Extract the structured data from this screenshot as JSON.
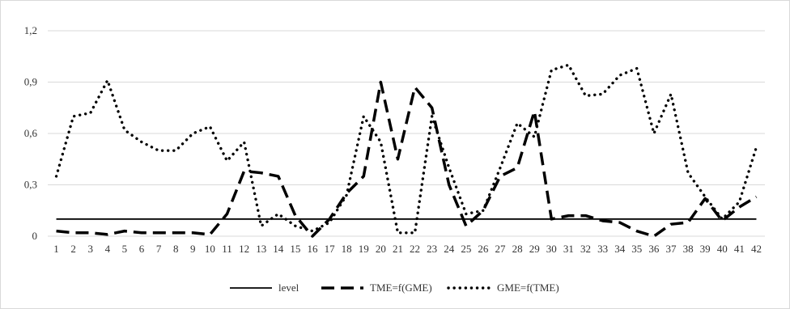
{
  "chart_data": {
    "type": "line",
    "title": "",
    "xlabel": "",
    "ylabel": "",
    "ylim": [
      0,
      1.2
    ],
    "y_ticks": [
      "0",
      "0,3",
      "0,6",
      "0,9",
      "1,2"
    ],
    "y_tick_values": [
      0,
      0.3,
      0.6,
      0.9,
      1.2
    ],
    "x": [
      "1",
      "2",
      "3",
      "4",
      "5",
      "6",
      "7",
      "8",
      "9",
      "10",
      "11",
      "12",
      "13",
      "14",
      "15",
      "16",
      "17",
      "18",
      "19",
      "20",
      "21",
      "22",
      "23",
      "24",
      "25",
      "26",
      "27",
      "28",
      "29",
      "30",
      "31",
      "32",
      "33",
      "34",
      "35",
      "36",
      "37",
      "38",
      "39",
      "40",
      "41",
      "42"
    ],
    "grid": {
      "horizontal": true,
      "vertical": false,
      "color": "#d9d9d9"
    },
    "legend_position": "bottom",
    "series": [
      {
        "name": "level",
        "style": "solid",
        "color": "#000000",
        "values": [
          0.1,
          0.1,
          0.1,
          0.1,
          0.1,
          0.1,
          0.1,
          0.1,
          0.1,
          0.1,
          0.1,
          0.1,
          0.1,
          0.1,
          0.1,
          0.1,
          0.1,
          0.1,
          0.1,
          0.1,
          0.1,
          0.1,
          0.1,
          0.1,
          0.1,
          0.1,
          0.1,
          0.1,
          0.1,
          0.1,
          0.1,
          0.1,
          0.1,
          0.1,
          0.1,
          0.1,
          0.1,
          0.1,
          0.1,
          0.1,
          0.1,
          0.1
        ]
      },
      {
        "name": "TME=f(GME)",
        "style": "dashed",
        "color": "#000000",
        "values": [
          0.03,
          0.02,
          0.02,
          0.01,
          0.03,
          0.02,
          0.02,
          0.02,
          0.02,
          0.01,
          0.13,
          0.38,
          0.37,
          0.35,
          0.12,
          0.0,
          0.1,
          0.25,
          0.35,
          0.9,
          0.45,
          0.87,
          0.75,
          0.3,
          0.06,
          0.15,
          0.35,
          0.4,
          0.73,
          0.1,
          0.12,
          0.12,
          0.09,
          0.08,
          0.03,
          0.0,
          0.07,
          0.08,
          0.22,
          0.09,
          0.17,
          0.23
        ]
      },
      {
        "name": "GME=f(TME)",
        "style": "dotted",
        "color": "#000000",
        "values": [
          0.35,
          0.7,
          0.72,
          0.91,
          0.62,
          0.55,
          0.5,
          0.5,
          0.6,
          0.64,
          0.44,
          0.55,
          0.06,
          0.13,
          0.06,
          0.03,
          0.08,
          0.24,
          0.7,
          0.55,
          0.02,
          0.02,
          0.7,
          0.4,
          0.13,
          0.15,
          0.4,
          0.66,
          0.58,
          0.97,
          1.0,
          0.82,
          0.83,
          0.94,
          0.98,
          0.6,
          0.83,
          0.37,
          0.23,
          0.1,
          0.2,
          0.52
        ]
      }
    ]
  }
}
